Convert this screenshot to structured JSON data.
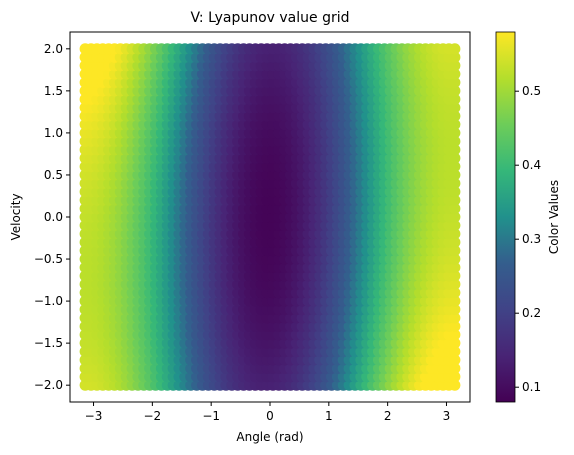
{
  "chart_data": {
    "type": "scatter",
    "title": "V: Lyapunov value grid",
    "xlabel": "Angle (rad)",
    "ylabel": "Velocity",
    "xlim": [
      -3.4,
      3.4
    ],
    "ylim": [
      -2.2,
      2.2
    ],
    "xticks": [
      -3,
      -2,
      -1,
      0,
      1,
      2,
      3
    ],
    "yticks": [
      -2.0,
      -1.5,
      -1.0,
      -0.5,
      0.0,
      0.5,
      1.0,
      1.5,
      2.0
    ],
    "xtick_labels": [
      "−3",
      "−2",
      "−1",
      "0",
      "1",
      "2",
      "3"
    ],
    "ytick_labels": [
      "−2.0",
      "−1.5",
      "−1.0",
      "−0.5",
      "0.0",
      "0.5",
      "1.0",
      "1.5",
      "2.0"
    ],
    "grid": false,
    "colormap": "viridis",
    "colorbar": {
      "label": "Color Values",
      "range": [
        0.08,
        0.58
      ],
      "ticks": [
        0.1,
        0.2,
        0.3,
        0.4,
        0.5
      ],
      "tick_labels": [
        "0.1",
        "0.2",
        "0.3",
        "0.4",
        "0.5"
      ]
    },
    "grid_points": {
      "x_range": [
        -3.1416,
        3.1416
      ],
      "y_range": [
        -2.0,
        2.0
      ],
      "x_count": 64,
      "y_count": 41
    },
    "value_model": {
      "description": "V(theta, omega) evaluated over a uniform grid of angle and velocity; minimum near origin, maxima near theta = ±pi",
      "min": 0.085,
      "max": 0.58
    }
  }
}
